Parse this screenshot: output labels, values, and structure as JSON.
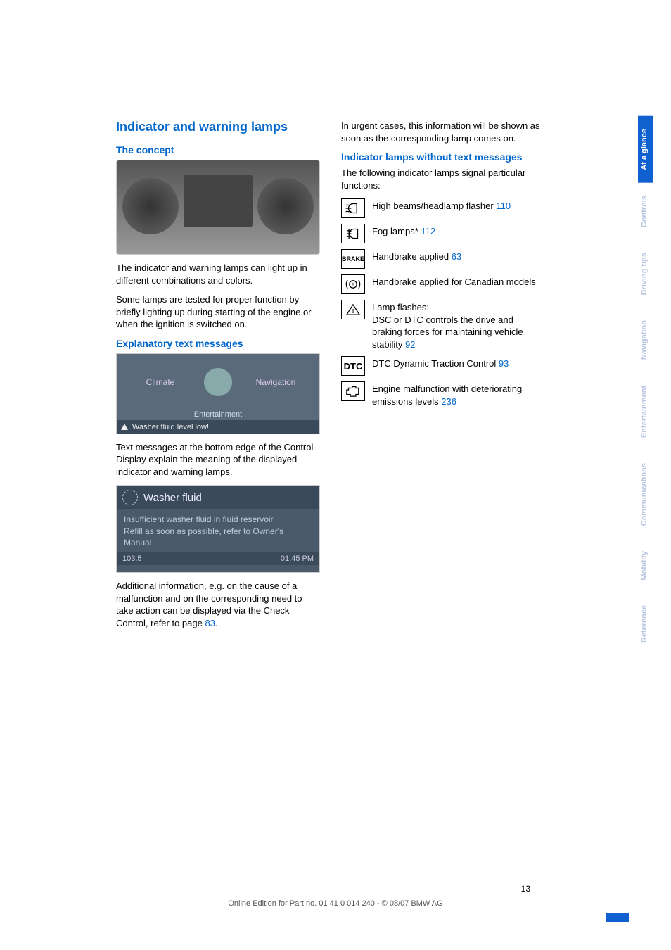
{
  "colors": {
    "link": "#0066cc",
    "sidebar_active_bg": "#1060d0",
    "sidebar_inactive_fg": "#b8c5e0",
    "text": "#000000"
  },
  "left": {
    "title": "Indicator and warning lamps",
    "concept_heading": "The concept",
    "concept_p1": "The indicator and warning lamps can light up in different combinations and colors.",
    "concept_p2": "Some lamps are tested for proper function by briefly lighting up during starting of the engine or when the ignition is switched on.",
    "expl_heading": "Explanatory text messages",
    "nav_display": {
      "left_label": "Climate",
      "right_label": "Navigation",
      "bottom_label": "Entertainment",
      "warning": "Washer fluid level low!"
    },
    "expl_p1": "Text messages at the bottom edge of the Control Display explain the meaning of the displayed indicator and warning lamps.",
    "washer_display": {
      "title": "Washer fluid",
      "line1": "Insufficient washer fluid in fluid reservoir.",
      "line2": "Refill as soon as possible, refer to Owner's Manual.",
      "foot_left": "103.5",
      "foot_right": "01:45 PM"
    },
    "additional_text": "Additional information, e.g. on the cause of a malfunction and on the corresponding need to take action can be displayed via the Check Control, refer to page ",
    "additional_ref": "83",
    "additional_tail": "."
  },
  "right": {
    "intro": "In urgent cases, this information will be shown as soon as the corresponding lamp comes on.",
    "heading": "Indicator lamps without text messages",
    "subintro": "The following indicator lamps signal particular functions:",
    "lamps": [
      {
        "icon": "highbeam",
        "text": "High beams/headlamp flasher",
        "ref": "110"
      },
      {
        "icon": "fog",
        "text": "Fog lamps*",
        "ref": "112"
      },
      {
        "icon": "BRAKE",
        "text": "Handbrake applied",
        "ref": "63"
      },
      {
        "icon": "brake-circ",
        "text": "Handbrake applied for Canadian models",
        "ref": ""
      },
      {
        "icon": "tri-excl",
        "text": "Lamp flashes:\nDSC or DTC controls the drive and braking forces for maintaining vehicle stability",
        "ref": "92"
      },
      {
        "icon": "DTC",
        "text": "DTC Dynamic Traction Control",
        "ref": "93"
      },
      {
        "icon": "engine",
        "text": "Engine malfunction with deteriorating emissions levels",
        "ref": "236"
      }
    ]
  },
  "sidebar": [
    {
      "label": "At a glance",
      "active": true
    },
    {
      "label": "Controls",
      "active": false
    },
    {
      "label": "Driving tips",
      "active": false
    },
    {
      "label": "Navigation",
      "active": false
    },
    {
      "label": "Entertainment",
      "active": false
    },
    {
      "label": "Communications",
      "active": false
    },
    {
      "label": "Mobility",
      "active": false
    },
    {
      "label": "Reference",
      "active": false
    }
  ],
  "footer": {
    "page": "13",
    "line": "Online Edition for Part no. 01 41 0 014 240 - © 08/07 BMW AG"
  }
}
